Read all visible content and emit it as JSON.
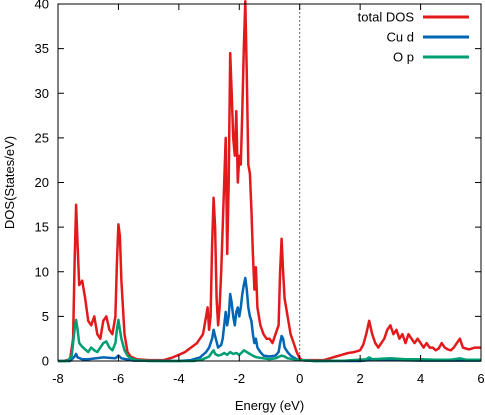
{
  "chart_data": {
    "type": "line",
    "title": "",
    "xlabel": "Energy (eV)",
    "ylabel": "DOS(States/eV)",
    "xlim": [
      -8,
      6
    ],
    "ylim": [
      0,
      40
    ],
    "x_ticks": [
      -8,
      -6,
      -4,
      -2,
      0,
      2,
      4,
      6
    ],
    "y_ticks": [
      0,
      5,
      10,
      15,
      20,
      25,
      30,
      35,
      40
    ],
    "fermi_level": 0,
    "legend_position": "top-right",
    "series": [
      {
        "name": "total DOS",
        "color": "#e31a1c",
        "points": [
          [
            -8.0,
            0
          ],
          [
            -7.8,
            0
          ],
          [
            -7.6,
            0.2
          ],
          [
            -7.5,
            2.5
          ],
          [
            -7.45,
            11
          ],
          [
            -7.4,
            17.5
          ],
          [
            -7.35,
            13
          ],
          [
            -7.3,
            8.5
          ],
          [
            -7.2,
            9
          ],
          [
            -7.1,
            7
          ],
          [
            -7.0,
            4.5
          ],
          [
            -6.9,
            4
          ],
          [
            -6.8,
            5
          ],
          [
            -6.7,
            3
          ],
          [
            -6.6,
            2.5
          ],
          [
            -6.5,
            4.5
          ],
          [
            -6.4,
            5
          ],
          [
            -6.3,
            3.5
          ],
          [
            -6.2,
            3
          ],
          [
            -6.1,
            5
          ],
          [
            -6.05,
            11
          ],
          [
            -6.0,
            15.3
          ],
          [
            -5.95,
            14
          ],
          [
            -5.9,
            9
          ],
          [
            -5.8,
            3
          ],
          [
            -5.7,
            1
          ],
          [
            -5.6,
            0.5
          ],
          [
            -5.4,
            0.2
          ],
          [
            -5.0,
            0.1
          ],
          [
            -4.5,
            0.1
          ],
          [
            -4.2,
            0.4
          ],
          [
            -4.0,
            0.7
          ],
          [
            -3.8,
            1
          ],
          [
            -3.6,
            1.5
          ],
          [
            -3.4,
            2
          ],
          [
            -3.2,
            3
          ],
          [
            -3.1,
            5
          ],
          [
            -3.05,
            6
          ],
          [
            -3.0,
            3.5
          ],
          [
            -2.95,
            5
          ],
          [
            -2.9,
            13
          ],
          [
            -2.85,
            18.3
          ],
          [
            -2.8,
            15
          ],
          [
            -2.75,
            7
          ],
          [
            -2.7,
            4
          ],
          [
            -2.65,
            6
          ],
          [
            -2.6,
            10
          ],
          [
            -2.55,
            15
          ],
          [
            -2.5,
            20
          ],
          [
            -2.45,
            25
          ],
          [
            -2.4,
            12
          ],
          [
            -2.35,
            20
          ],
          [
            -2.3,
            34.5
          ],
          [
            -2.25,
            30
          ],
          [
            -2.2,
            25
          ],
          [
            -2.15,
            23
          ],
          [
            -2.1,
            28
          ],
          [
            -2.05,
            20
          ],
          [
            -2.0,
            23
          ],
          [
            -1.95,
            22
          ],
          [
            -1.9,
            28
          ],
          [
            -1.85,
            35
          ],
          [
            -1.8,
            40.3
          ],
          [
            -1.75,
            32
          ],
          [
            -1.7,
            22
          ],
          [
            -1.65,
            21
          ],
          [
            -1.6,
            17
          ],
          [
            -1.55,
            12
          ],
          [
            -1.5,
            8
          ],
          [
            -1.45,
            10.5
          ],
          [
            -1.4,
            6
          ],
          [
            -1.3,
            4
          ],
          [
            -1.2,
            3
          ],
          [
            -1.1,
            2.5
          ],
          [
            -1.0,
            2.5
          ],
          [
            -0.9,
            2
          ],
          [
            -0.8,
            3
          ],
          [
            -0.7,
            4
          ],
          [
            -0.65,
            10
          ],
          [
            -0.6,
            13.7
          ],
          [
            -0.55,
            10
          ],
          [
            -0.5,
            7
          ],
          [
            -0.4,
            5
          ],
          [
            -0.3,
            3
          ],
          [
            -0.2,
            2
          ],
          [
            -0.1,
            1
          ],
          [
            0.0,
            0.3
          ],
          [
            0.1,
            0.1
          ],
          [
            0.5,
            0.1
          ],
          [
            0.8,
            0.1
          ],
          [
            1.0,
            0.3
          ],
          [
            1.2,
            0.5
          ],
          [
            1.4,
            0.7
          ],
          [
            1.6,
            0.9
          ],
          [
            1.8,
            1
          ],
          [
            2.0,
            1.2
          ],
          [
            2.1,
            1.8
          ],
          [
            2.2,
            3
          ],
          [
            2.3,
            4.5
          ],
          [
            2.4,
            3
          ],
          [
            2.5,
            2
          ],
          [
            2.6,
            1.5
          ],
          [
            2.7,
            2
          ],
          [
            2.8,
            2.5
          ],
          [
            2.9,
            3.5
          ],
          [
            3.0,
            4
          ],
          [
            3.1,
            3
          ],
          [
            3.2,
            3.5
          ],
          [
            3.3,
            2.5
          ],
          [
            3.4,
            3
          ],
          [
            3.5,
            2
          ],
          [
            3.6,
            3
          ],
          [
            3.7,
            2.5
          ],
          [
            3.8,
            2
          ],
          [
            3.9,
            2.5
          ],
          [
            4.0,
            2
          ],
          [
            4.1,
            1.5
          ],
          [
            4.2,
            2
          ],
          [
            4.3,
            1.5
          ],
          [
            4.4,
            1.5
          ],
          [
            4.5,
            1.2
          ],
          [
            4.6,
            1.4
          ],
          [
            4.7,
            2
          ],
          [
            4.8,
            1.5
          ],
          [
            4.9,
            1.3
          ],
          [
            5.0,
            1.2
          ],
          [
            5.1,
            1.5
          ],
          [
            5.2,
            2
          ],
          [
            5.3,
            2.5
          ],
          [
            5.4,
            1.5
          ],
          [
            5.5,
            1.4
          ],
          [
            5.6,
            1.3
          ],
          [
            5.8,
            1.5
          ],
          [
            6.0,
            1.5
          ]
        ]
      },
      {
        "name": "Cu d",
        "color": "#0066b3",
        "points": [
          [
            -8.0,
            0
          ],
          [
            -7.6,
            0
          ],
          [
            -7.45,
            0.5
          ],
          [
            -7.4,
            0.8
          ],
          [
            -7.35,
            0.4
          ],
          [
            -7.2,
            0.2
          ],
          [
            -7.0,
            0.2
          ],
          [
            -6.5,
            0.4
          ],
          [
            -6.1,
            0.3
          ],
          [
            -6.0,
            0.6
          ],
          [
            -5.9,
            0.3
          ],
          [
            -5.5,
            0.05
          ],
          [
            -4.0,
            0
          ],
          [
            -3.6,
            0.1
          ],
          [
            -3.3,
            0.4
          ],
          [
            -3.1,
            1
          ],
          [
            -3.0,
            1.5
          ],
          [
            -2.9,
            2.5
          ],
          [
            -2.85,
            3.5
          ],
          [
            -2.8,
            2.8
          ],
          [
            -2.7,
            1.5
          ],
          [
            -2.6,
            1.8
          ],
          [
            -2.55,
            2.5
          ],
          [
            -2.5,
            4
          ],
          [
            -2.45,
            5.5
          ],
          [
            -2.4,
            4
          ],
          [
            -2.35,
            5
          ],
          [
            -2.3,
            7.5
          ],
          [
            -2.25,
            6.5
          ],
          [
            -2.2,
            5
          ],
          [
            -2.15,
            4
          ],
          [
            -2.1,
            5.5
          ],
          [
            -2.05,
            6
          ],
          [
            -2.0,
            5
          ],
          [
            -1.95,
            6
          ],
          [
            -1.9,
            7.5
          ],
          [
            -1.85,
            8.5
          ],
          [
            -1.8,
            9.3
          ],
          [
            -1.75,
            8
          ],
          [
            -1.7,
            6
          ],
          [
            -1.65,
            5
          ],
          [
            -1.6,
            4.5
          ],
          [
            -1.55,
            3
          ],
          [
            -1.5,
            2
          ],
          [
            -1.45,
            2.5
          ],
          [
            -1.4,
            1.5
          ],
          [
            -1.3,
            1
          ],
          [
            -1.2,
            0.6
          ],
          [
            -1.0,
            0.5
          ],
          [
            -0.8,
            0.6
          ],
          [
            -0.7,
            1
          ],
          [
            -0.65,
            2
          ],
          [
            -0.6,
            2.8
          ],
          [
            -0.55,
            2.5
          ],
          [
            -0.5,
            1.5
          ],
          [
            -0.4,
            1
          ],
          [
            -0.3,
            0.6
          ],
          [
            -0.2,
            0.4
          ],
          [
            -0.1,
            0.2
          ],
          [
            0.0,
            0.1
          ],
          [
            0.5,
            0
          ],
          [
            2.0,
            0
          ],
          [
            2.3,
            0.1
          ],
          [
            3.0,
            0.1
          ],
          [
            4.0,
            0.05
          ],
          [
            5.0,
            0.05
          ],
          [
            6.0,
            0.05
          ]
        ]
      },
      {
        "name": "O p",
        "color": "#009e73",
        "points": [
          [
            -8.0,
            0
          ],
          [
            -7.7,
            0
          ],
          [
            -7.55,
            0.5
          ],
          [
            -7.5,
            2
          ],
          [
            -7.45,
            3.5
          ],
          [
            -7.4,
            4.6
          ],
          [
            -7.35,
            3.5
          ],
          [
            -7.3,
            2
          ],
          [
            -7.2,
            1.6
          ],
          [
            -7.1,
            1.3
          ],
          [
            -7.0,
            1
          ],
          [
            -6.9,
            1.5
          ],
          [
            -6.8,
            1.2
          ],
          [
            -6.7,
            1
          ],
          [
            -6.6,
            1.5
          ],
          [
            -6.5,
            2
          ],
          [
            -6.4,
            2.2
          ],
          [
            -6.3,
            1.5
          ],
          [
            -6.2,
            1.2
          ],
          [
            -6.1,
            2
          ],
          [
            -6.05,
            3.5
          ],
          [
            -6.0,
            4.6
          ],
          [
            -5.95,
            3.5
          ],
          [
            -5.9,
            2.5
          ],
          [
            -5.8,
            1.2
          ],
          [
            -5.7,
            0.6
          ],
          [
            -5.6,
            0.3
          ],
          [
            -5.4,
            0.1
          ],
          [
            -5.0,
            0
          ],
          [
            -3.5,
            0
          ],
          [
            -3.2,
            0.2
          ],
          [
            -3.0,
            0.5
          ],
          [
            -2.9,
            1
          ],
          [
            -2.85,
            1.2
          ],
          [
            -2.8,
            0.8
          ],
          [
            -2.7,
            0.6
          ],
          [
            -2.6,
            0.7
          ],
          [
            -2.5,
            0.9
          ],
          [
            -2.4,
            0.7
          ],
          [
            -2.3,
            1
          ],
          [
            -2.2,
            0.8
          ],
          [
            -2.1,
            0.9
          ],
          [
            -2.0,
            0.7
          ],
          [
            -1.9,
            1
          ],
          [
            -1.85,
            1.2
          ],
          [
            -1.8,
            1.1
          ],
          [
            -1.7,
            0.9
          ],
          [
            -1.6,
            0.7
          ],
          [
            -1.5,
            0.5
          ],
          [
            -1.4,
            0.4
          ],
          [
            -1.2,
            0.3
          ],
          [
            -1.0,
            0.2
          ],
          [
            -0.8,
            0.3
          ],
          [
            -0.6,
            0.6
          ],
          [
            -0.5,
            0.5
          ],
          [
            -0.4,
            0.3
          ],
          [
            -0.2,
            0.2
          ],
          [
            0.0,
            0.1
          ],
          [
            0.5,
            0
          ],
          [
            1.5,
            0.05
          ],
          [
            2.2,
            0.2
          ],
          [
            2.3,
            0.4
          ],
          [
            2.4,
            0.2
          ],
          [
            3.0,
            0.3
          ],
          [
            3.5,
            0.2
          ],
          [
            4.0,
            0.2
          ],
          [
            4.5,
            0.15
          ],
          [
            5.0,
            0.15
          ],
          [
            5.3,
            0.3
          ],
          [
            5.5,
            0.15
          ],
          [
            6.0,
            0.15
          ]
        ]
      }
    ]
  }
}
